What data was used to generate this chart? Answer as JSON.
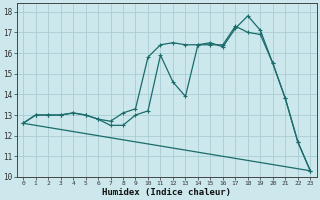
{
  "xlabel": "Humidex (Indice chaleur)",
  "bg_color": "#cce8ec",
  "grid_color": "#aaccd4",
  "line_color": "#1a6b6b",
  "xlim": [
    -0.5,
    23.5
  ],
  "ylim": [
    10,
    18.4
  ],
  "yticks": [
    10,
    11,
    12,
    13,
    14,
    15,
    16,
    17,
    18
  ],
  "xticks": [
    0,
    1,
    2,
    3,
    4,
    5,
    6,
    7,
    8,
    9,
    10,
    11,
    12,
    13,
    14,
    15,
    16,
    17,
    18,
    19,
    20,
    21,
    22,
    23
  ],
  "line1_x": [
    0,
    1,
    2,
    3,
    4,
    5,
    6,
    7,
    8,
    9,
    10,
    11,
    12,
    13,
    14,
    15,
    16,
    17,
    18,
    19,
    20,
    21,
    22,
    23
  ],
  "line1_y": [
    12.6,
    13.0,
    13.0,
    13.0,
    13.1,
    13.0,
    12.8,
    12.7,
    13.1,
    13.3,
    15.8,
    16.4,
    16.5,
    16.4,
    16.4,
    16.4,
    16.4,
    17.3,
    17.0,
    16.9,
    15.5,
    13.8,
    11.7,
    10.3
  ],
  "line2_x": [
    0,
    1,
    2,
    3,
    4,
    5,
    6,
    7,
    8,
    9,
    10,
    11,
    12,
    13,
    14,
    15,
    16,
    17,
    18,
    19,
    20,
    21,
    22,
    23
  ],
  "line2_y": [
    12.6,
    13.0,
    13.0,
    13.0,
    13.1,
    13.0,
    12.8,
    12.5,
    12.5,
    13.0,
    13.2,
    15.9,
    14.6,
    13.9,
    16.4,
    16.5,
    16.3,
    17.2,
    17.8,
    17.1,
    15.5,
    13.8,
    11.7,
    10.3
  ],
  "line3_x": [
    0,
    23
  ],
  "line3_y": [
    12.6,
    10.3
  ]
}
